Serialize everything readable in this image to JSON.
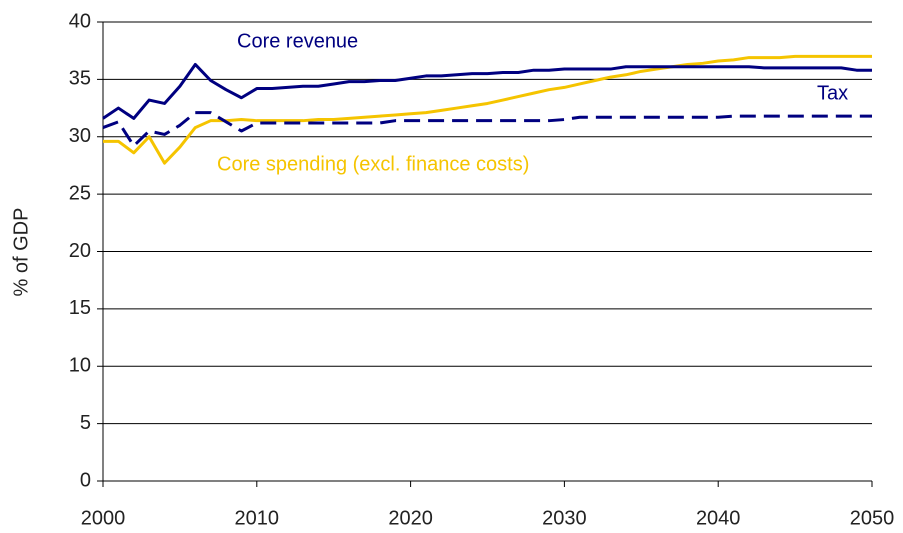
{
  "chart_data": {
    "type": "line",
    "y_label": "% of GDP",
    "x": [
      2000,
      2001,
      2002,
      2003,
      2004,
      2005,
      2006,
      2007,
      2008,
      2009,
      2010,
      2011,
      2012,
      2013,
      2014,
      2015,
      2016,
      2017,
      2018,
      2019,
      2020,
      2021,
      2022,
      2023,
      2024,
      2025,
      2026,
      2027,
      2028,
      2029,
      2030,
      2031,
      2032,
      2033,
      2034,
      2035,
      2036,
      2037,
      2038,
      2039,
      2040,
      2041,
      2042,
      2043,
      2044,
      2045,
      2046,
      2047,
      2048,
      2049,
      2050
    ],
    "series": [
      {
        "name": "Core spending (excl. finance costs)",
        "color": "#f5c400",
        "dashed": false,
        "values": [
          29.6,
          29.6,
          28.6,
          30.0,
          27.7,
          29.1,
          30.8,
          31.4,
          31.4,
          31.5,
          31.4,
          31.4,
          31.4,
          31.4,
          31.5,
          31.5,
          31.6,
          31.7,
          31.8,
          31.9,
          32.0,
          32.1,
          32.3,
          32.5,
          32.7,
          32.9,
          33.2,
          33.5,
          33.8,
          34.1,
          34.3,
          34.6,
          34.9,
          35.2,
          35.4,
          35.7,
          35.9,
          36.1,
          36.3,
          36.4,
          36.6,
          36.7,
          36.9,
          36.9,
          36.9,
          37.0,
          37.0,
          37.0,
          37.0,
          37.0,
          37.0
        ]
      },
      {
        "name": "Tax",
        "color": "#000080",
        "dashed": true,
        "values": [
          30.8,
          31.3,
          29.2,
          30.5,
          30.2,
          31.0,
          32.1,
          32.1,
          31.3,
          30.5,
          31.2,
          31.2,
          31.2,
          31.2,
          31.2,
          31.2,
          31.2,
          31.2,
          31.2,
          31.4,
          31.4,
          31.4,
          31.4,
          31.4,
          31.4,
          31.4,
          31.4,
          31.4,
          31.4,
          31.4,
          31.5,
          31.7,
          31.7,
          31.7,
          31.7,
          31.7,
          31.7,
          31.7,
          31.7,
          31.7,
          31.7,
          31.8,
          31.8,
          31.8,
          31.8,
          31.8,
          31.8,
          31.8,
          31.8,
          31.8,
          31.8
        ]
      },
      {
        "name": "Core revenue",
        "color": "#000080",
        "dashed": false,
        "values": [
          31.6,
          32.5,
          31.6,
          33.2,
          32.9,
          34.4,
          36.3,
          34.9,
          34.1,
          33.4,
          34.2,
          34.2,
          34.3,
          34.4,
          34.4,
          34.6,
          34.8,
          34.8,
          34.9,
          34.9,
          35.1,
          35.3,
          35.3,
          35.4,
          35.5,
          35.5,
          35.6,
          35.6,
          35.8,
          35.8,
          35.9,
          35.9,
          35.9,
          35.9,
          36.1,
          36.1,
          36.1,
          36.1,
          36.1,
          36.1,
          36.1,
          36.1,
          36.1,
          36.0,
          36.0,
          36.0,
          36.0,
          36.0,
          36.0,
          35.8,
          35.8
        ]
      }
    ],
    "xlim": [
      2000,
      2050
    ],
    "xticks": [
      2000,
      2010,
      2020,
      2030,
      2040,
      2050
    ],
    "ylim": [
      0,
      40
    ],
    "yticks": [
      0,
      5,
      10,
      15,
      20,
      25,
      30,
      35,
      40
    ],
    "grid": true
  }
}
